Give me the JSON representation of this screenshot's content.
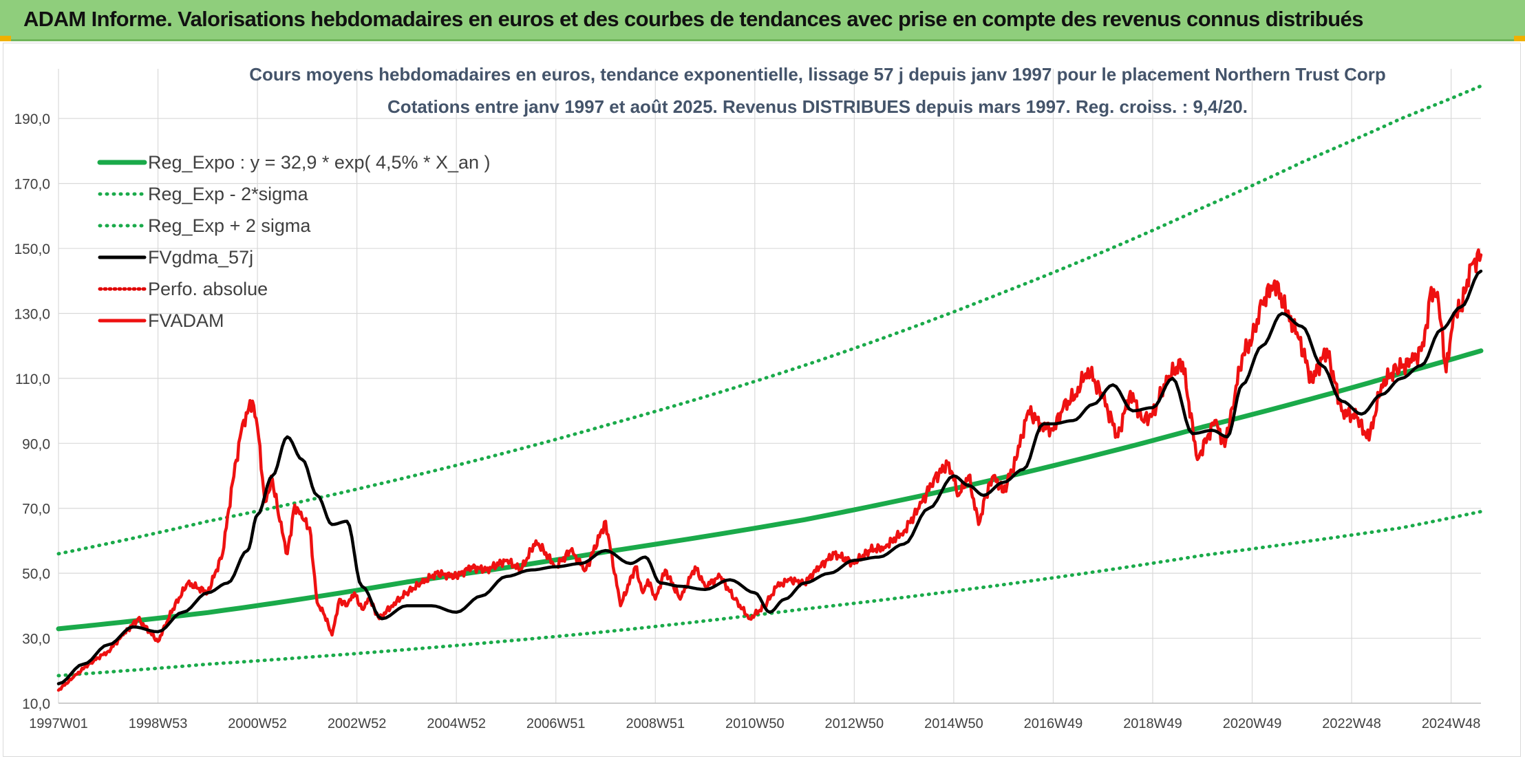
{
  "banner": {
    "title": "ADAM Informe. Valorisations hebdomadaires en euros et des courbes de tendances avec prise en compte des revenus connus distribués"
  },
  "colors": {
    "banner": "#8fce7c",
    "reg_expo": "#1aaa4a",
    "reg_band": "#1aaa4a",
    "fvgdma": "#000000",
    "perfo": "#e00000",
    "fvadam": "#ee1111",
    "grid": "#d9d9d9"
  },
  "chart_data": {
    "type": "line",
    "title": "Cours moyens hebdomadaires en euros, tendance exponentielle, lissage 57 j depuis janv 1997 pour le placement Northern Trust Corp",
    "subtitle": "Cotations entre janv 1997 et août 2025. Revenus DISTRIBUES depuis mars 1997. Reg. croiss. : 9,4/20.",
    "x_range": [
      1997.0,
      2025.6
    ],
    "ylim": [
      10,
      200
    ],
    "y_ticks": [
      "10,0",
      "30,0",
      "50,0",
      "70,0",
      "90,0",
      "110,0",
      "130,0",
      "150,0",
      "170,0",
      "190,0"
    ],
    "x_ticks": [
      "1997W01",
      "1998W53",
      "2000W52",
      "2002W52",
      "2004W52",
      "2006W51",
      "2008W51",
      "2010W50",
      "2012W50",
      "2014W50",
      "2016W49",
      "2018W49",
      "2020W49",
      "2022W48",
      "2024W48"
    ],
    "x_tick_positions": [
      1997.0,
      1999.0,
      2001.0,
      2003.0,
      2005.0,
      2007.0,
      2009.0,
      2011.0,
      2013.0,
      2015.0,
      2017.0,
      2019.0,
      2021.0,
      2023.0,
      2025.0
    ],
    "grid": true,
    "legend_placement": "top-left",
    "series": [
      {
        "name": "Reg_Expo : y = 32,9 * exp( 4,5% *  X_an )",
        "key": "reg",
        "style": "solid",
        "x": [
          1997.0,
          2000.0,
          2004.0,
          2008.0,
          2012.0,
          2016.0,
          2020.0,
          2024.0,
          2025.6
        ],
        "y": [
          32.9,
          37.9,
          47.3,
          56.6,
          66.5,
          79.5,
          95.0,
          111.5,
          118.5
        ]
      },
      {
        "name": "Reg_Exp - 2*sigma",
        "key": "minus",
        "style": "dotted",
        "x": [
          1997.0,
          2000.0,
          2004.0,
          2008.0,
          2012.0,
          2016.0,
          2020.0,
          2024.0,
          2025.6
        ],
        "y": [
          18.5,
          22.0,
          26.5,
          32.0,
          39.0,
          46.5,
          55.5,
          64.0,
          69.0
        ]
      },
      {
        "name": "Reg_Exp + 2 sigma",
        "key": "plus",
        "style": "dotted",
        "x": [
          1997.0,
          2000.0,
          2004.0,
          2008.0,
          2012.0,
          2016.0,
          2020.0,
          2022.0,
          2024.0,
          2025.6
        ],
        "y": [
          56.0,
          66.0,
          79.5,
          95.5,
          114.0,
          136.5,
          162.5,
          176.5,
          190.0,
          200.0
        ]
      },
      {
        "name": "FVgdma_57j",
        "key": "gdma",
        "style": "solid",
        "x": [
          1997.0,
          1997.5,
          1998.0,
          1998.5,
          1999.0,
          1999.5,
          2000.0,
          2000.4,
          2000.8,
          2001.0,
          2001.3,
          2001.6,
          2001.9,
          2002.2,
          2002.5,
          2002.8,
          2003.1,
          2003.5,
          2004.0,
          2004.5,
          2005.0,
          2005.5,
          2006.0,
          2006.5,
          2007.0,
          2007.5,
          2008.0,
          2008.5,
          2008.8,
          2009.1,
          2009.5,
          2010.0,
          2010.5,
          2011.0,
          2011.3,
          2011.6,
          2012.0,
          2012.5,
          2013.0,
          2013.5,
          2014.0,
          2014.5,
          2015.0,
          2015.3,
          2015.6,
          2016.0,
          2016.4,
          2016.8,
          2017.0,
          2017.4,
          2017.8,
          2018.2,
          2018.6,
          2019.0,
          2019.4,
          2019.8,
          2020.2,
          2020.5,
          2020.8,
          2021.2,
          2021.6,
          2022.0,
          2022.4,
          2022.8,
          2023.2,
          2023.6,
          2024.0,
          2024.4,
          2024.8,
          2025.2,
          2025.6
        ],
        "y": [
          16.0,
          22.0,
          28.0,
          33.5,
          32.0,
          38.0,
          44.0,
          47.0,
          57.0,
          68.0,
          80.0,
          92.0,
          85.0,
          74.0,
          65.0,
          66.0,
          46.0,
          36.0,
          40.0,
          40.0,
          38.0,
          43.0,
          49.0,
          51.0,
          52.0,
          53.0,
          57.0,
          53.0,
          55.0,
          47.0,
          46.0,
          45.0,
          48.0,
          44.0,
          38.0,
          42.0,
          47.0,
          50.0,
          54.0,
          55.0,
          59.0,
          70.0,
          80.0,
          77.0,
          74.0,
          78.0,
          82.0,
          96.0,
          96.0,
          97.0,
          102.0,
          108.0,
          100.0,
          101.0,
          110.0,
          93.0,
          94.0,
          92.0,
          108.0,
          120.0,
          130.0,
          126.0,
          114.0,
          103.0,
          99.0,
          105.0,
          110.0,
          114.0,
          125.0,
          132.0,
          143.0
        ]
      },
      {
        "name": "Perfo. absolue",
        "key": "perfo",
        "style": "dotted",
        "x": [],
        "y": []
      },
      {
        "name": "FVADAM",
        "key": "fvadam",
        "style": "solid",
        "x": [
          1997.0,
          1997.3,
          1997.6,
          1998.0,
          1998.3,
          1998.6,
          1999.0,
          1999.3,
          1999.6,
          2000.0,
          2000.3,
          2000.5,
          2000.7,
          2000.9,
          2001.0,
          2001.15,
          2001.3,
          2001.45,
          2001.6,
          2001.75,
          2001.9,
          2002.05,
          2002.2,
          2002.35,
          2002.5,
          2002.65,
          2002.8,
          2002.95,
          2003.1,
          2003.25,
          2003.45,
          2003.7,
          2004.0,
          2004.3,
          2004.6,
          2005.0,
          2005.3,
          2005.6,
          2006.0,
          2006.3,
          2006.6,
          2007.0,
          2007.3,
          2007.6,
          2008.0,
          2008.3,
          2008.6,
          2008.75,
          2008.85,
          2009.0,
          2009.2,
          2009.5,
          2009.8,
          2010.0,
          2010.3,
          2010.6,
          2010.9,
          2011.2,
          2011.45,
          2011.7,
          2012.0,
          2012.3,
          2012.6,
          2013.0,
          2013.3,
          2013.6,
          2014.0,
          2014.3,
          2014.6,
          2014.9,
          2015.1,
          2015.3,
          2015.5,
          2015.65,
          2015.8,
          2016.0,
          2016.25,
          2016.5,
          2016.75,
          2017.0,
          2017.2,
          2017.45,
          2017.7,
          2018.0,
          2018.3,
          2018.55,
          2018.8,
          2019.0,
          2019.3,
          2019.6,
          2019.9,
          2020.1,
          2020.25,
          2020.45,
          2020.6,
          2020.8,
          2021.0,
          2021.2,
          2021.45,
          2021.7,
          2021.95,
          2022.2,
          2022.5,
          2022.8,
          2023.1,
          2023.35,
          2023.6,
          2023.9,
          2024.2,
          2024.45,
          2024.6,
          2024.75,
          2024.9,
          2025.05,
          2025.2,
          2025.4,
          2025.6
        ],
        "y": [
          14.0,
          18.0,
          22.0,
          26.0,
          31.0,
          36.0,
          29.0,
          39.0,
          47.0,
          44.0,
          56.0,
          78.0,
          96.0,
          103.0,
          95.0,
          72.0,
          79.0,
          66.0,
          56.0,
          71.0,
          67.0,
          64.0,
          41.0,
          37.0,
          31.0,
          42.0,
          40.0,
          44.0,
          39.0,
          42.0,
          36.0,
          40.0,
          44.0,
          47.0,
          50.0,
          49.0,
          52.0,
          51.0,
          54.0,
          51.0,
          60.0,
          52.0,
          57.0,
          51.0,
          66.0,
          40.0,
          52.0,
          44.0,
          48.0,
          42.0,
          51.0,
          42.0,
          52.0,
          46.0,
          49.0,
          42.0,
          36.0,
          40.0,
          46.0,
          48.0,
          47.0,
          52.0,
          56.0,
          53.0,
          57.0,
          58.0,
          63.0,
          70.0,
          79.0,
          84.0,
          74.0,
          80.0,
          65.0,
          74.0,
          80.0,
          75.0,
          85.0,
          100.0,
          96.0,
          94.0,
          101.0,
          105.0,
          113.0,
          104.0,
          92.0,
          106.0,
          97.0,
          99.0,
          110.0,
          115.0,
          85.0,
          92.0,
          97.0,
          89.0,
          101.0,
          117.0,
          122.0,
          133.0,
          140.0,
          130.0,
          122.0,
          109.0,
          119.0,
          100.0,
          98.0,
          91.0,
          108.0,
          113.0,
          115.0,
          120.0,
          138.0,
          133.0,
          112.0,
          130.0,
          131.0,
          145.0,
          148.0
        ]
      }
    ]
  }
}
